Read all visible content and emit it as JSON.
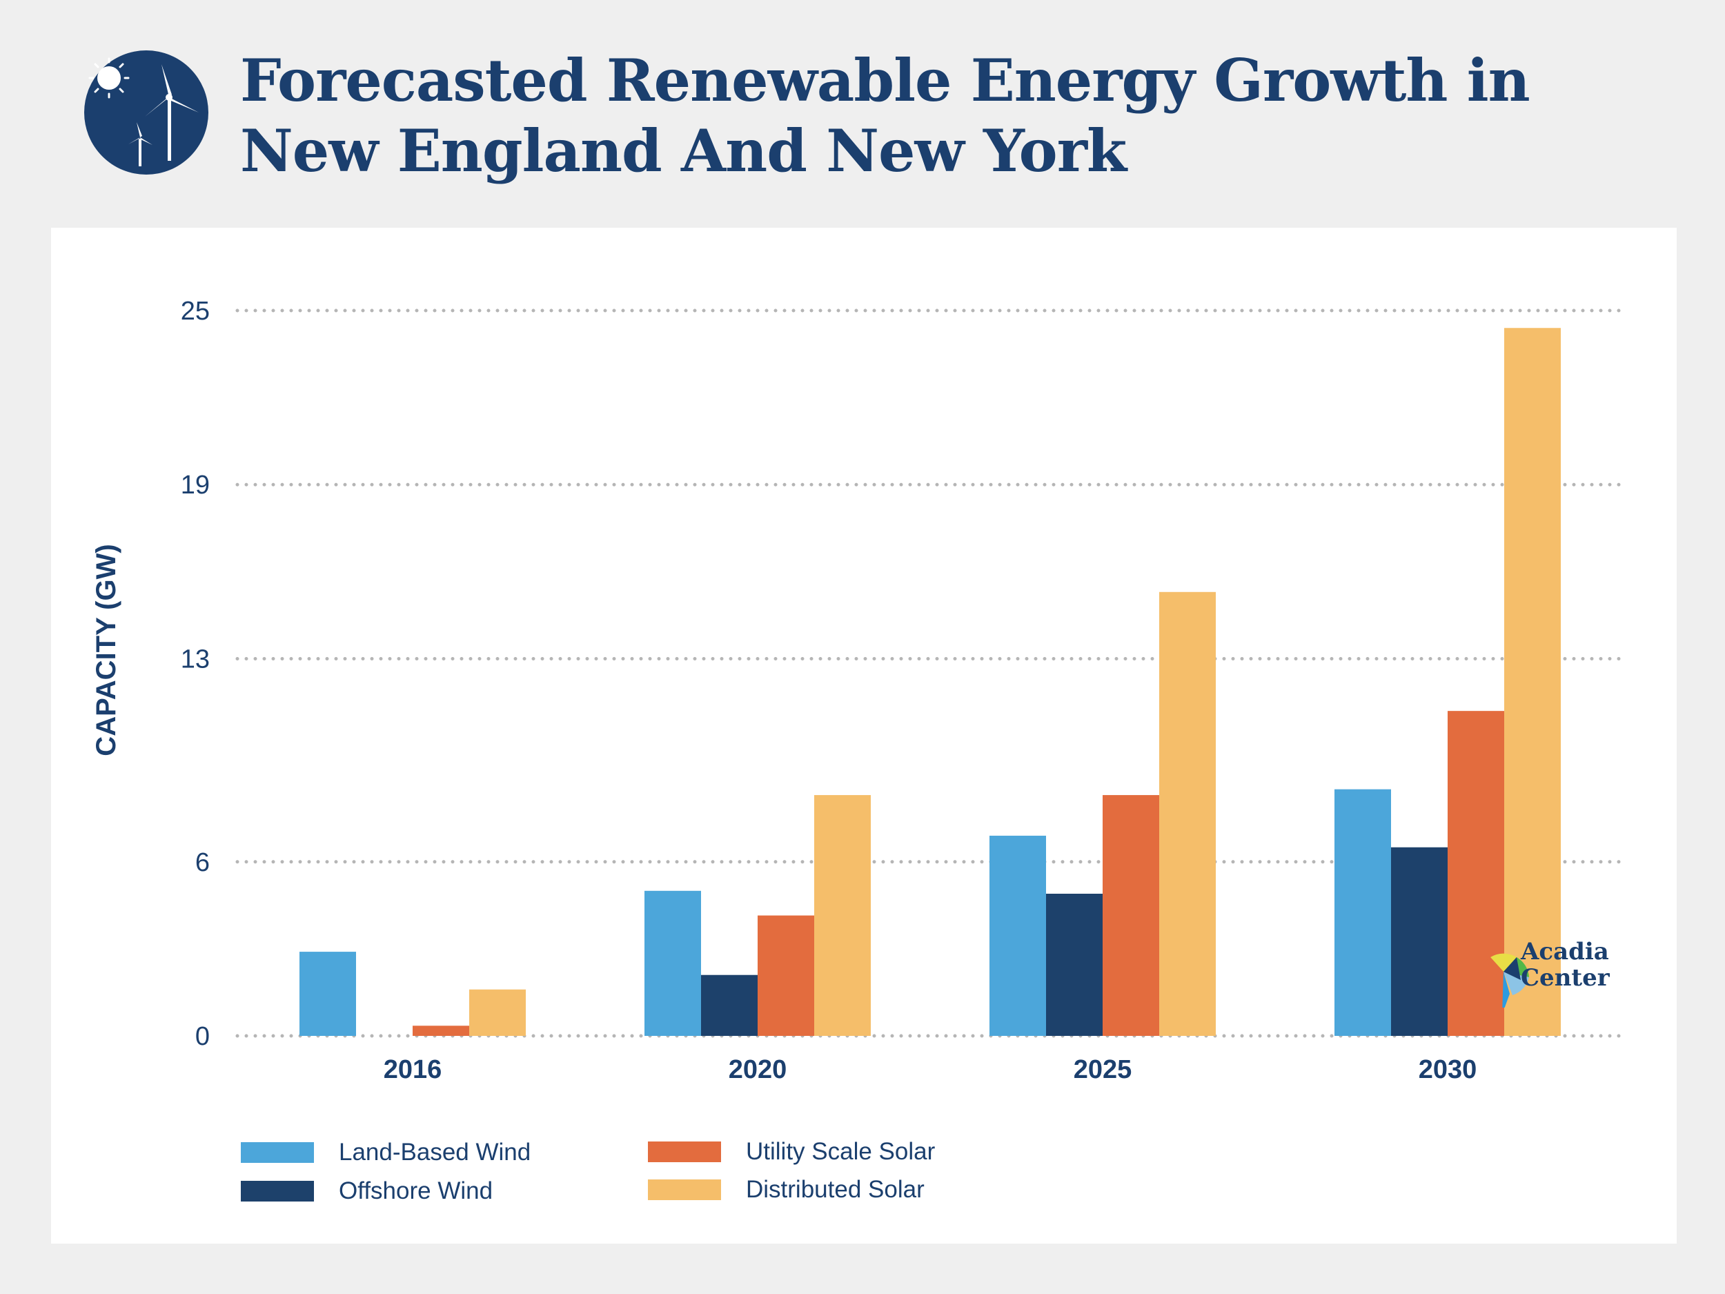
{
  "header": {
    "title_line1": "Forecasted Renewable Energy Growth in",
    "title_line2": "New England And New York",
    "icon": "sun-and-wind-turbines-icon"
  },
  "logo": {
    "line1": "Acadia",
    "line2": "Center"
  },
  "colors": {
    "navy": "#1b3f6e",
    "land_based_wind": "#4ca6da",
    "offshore_wind": "#1d416b",
    "utility_scale_solar": "#e36c3e",
    "distributed_solar": "#f5be6a",
    "background": "#efefef",
    "card": "#ffffff",
    "grid": "#b5b5b5"
  },
  "chart_data": {
    "type": "bar",
    "title": "Forecasted Renewable Energy Growth in New England And New York",
    "xlabel": "",
    "ylabel": "CAPACITY (GW)",
    "categories": [
      "2016",
      "2020",
      "2025",
      "2030"
    ],
    "yticks": [
      0,
      6,
      13,
      19,
      25
    ],
    "ylim": [
      0,
      25
    ],
    "grid": true,
    "legend_position": "bottom-left",
    "series": [
      {
        "name": "Land-Based Wind",
        "color": "#4ca6da",
        "values": [
          2.9,
          5.0,
          6.9,
          8.5
        ]
      },
      {
        "name": "Offshore Wind",
        "color": "#1d416b",
        "values": [
          0,
          2.1,
          4.9,
          6.5
        ]
      },
      {
        "name": "Utility Scale Solar",
        "color": "#e36c3e",
        "values": [
          0.35,
          4.15,
          8.3,
          11.2
        ]
      },
      {
        "name": "Distributed Solar",
        "color": "#f5be6a",
        "values": [
          1.6,
          8.3,
          15.3,
          24.4
        ]
      }
    ]
  }
}
